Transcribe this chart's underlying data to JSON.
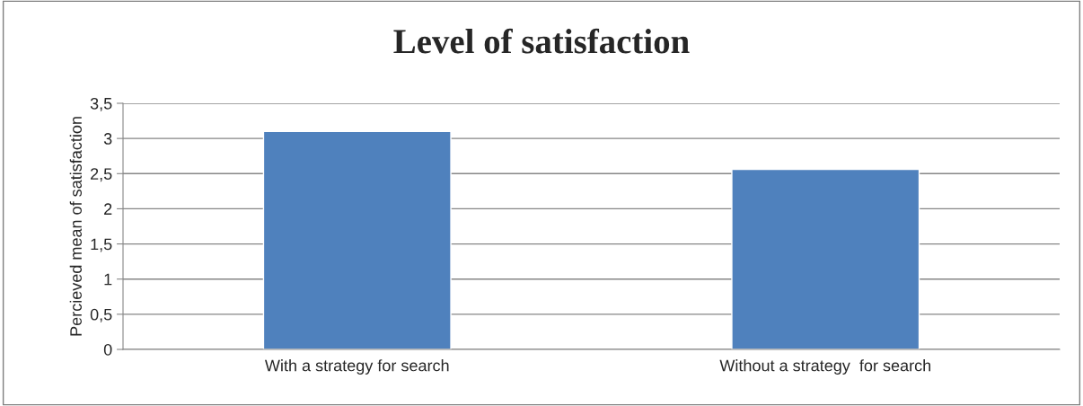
{
  "chart_data": {
    "type": "bar",
    "title": "Level of satisfaction",
    "ylabel": "Percieved mean of satisfaction",
    "categories": [
      "With a strategy for search",
      "Without a strategy  for search"
    ],
    "values": [
      3.1,
      2.56
    ],
    "color": "#4f81bd",
    "ylim": [
      0,
      3.5
    ],
    "yticks": [
      0,
      {
        "value": 0.5,
        "label": "0,5"
      },
      1,
      {
        "value": 1.5,
        "label": "1,5"
      },
      2,
      {
        "value": 2.5,
        "label": "2,5"
      },
      3,
      {
        "value": 3.5,
        "label": "3,5"
      }
    ],
    "grid": "y",
    "legend": false
  }
}
